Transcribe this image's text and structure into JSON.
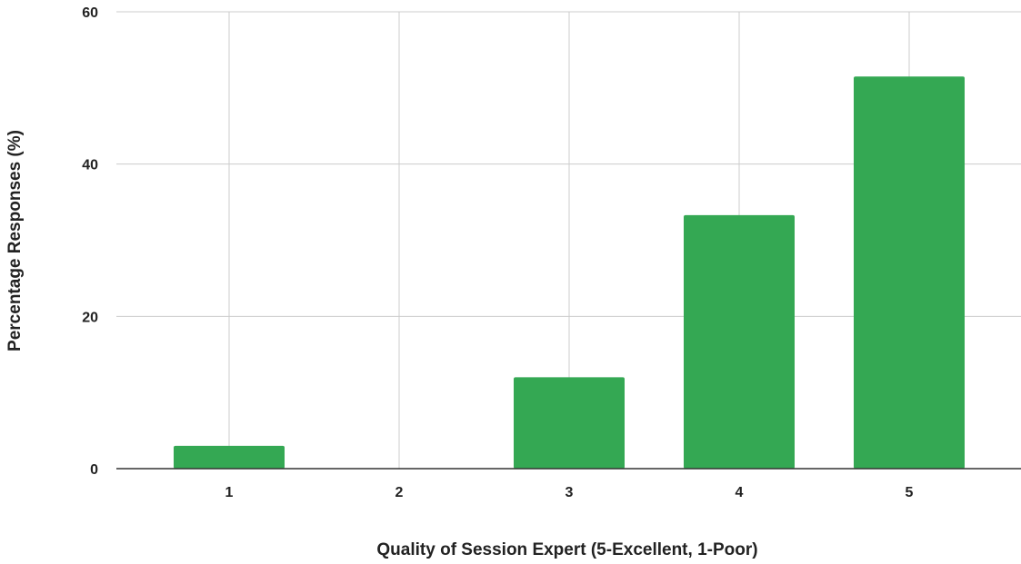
{
  "chart_data": {
    "type": "bar",
    "title": "",
    "xlabel": "Quality of Session Expert (5-Excellent, 1-Poor)",
    "ylabel": "Percentage Responses (%)",
    "categories": [
      "1",
      "2",
      "3",
      "4",
      "5"
    ],
    "values": [
      3,
      0,
      12,
      33.3,
      51.5
    ],
    "ylim": [
      0,
      60
    ],
    "yticks": [
      "0",
      "20",
      "40",
      "60"
    ],
    "grid": true,
    "legend": "none",
    "bar_color": "#34a853"
  }
}
